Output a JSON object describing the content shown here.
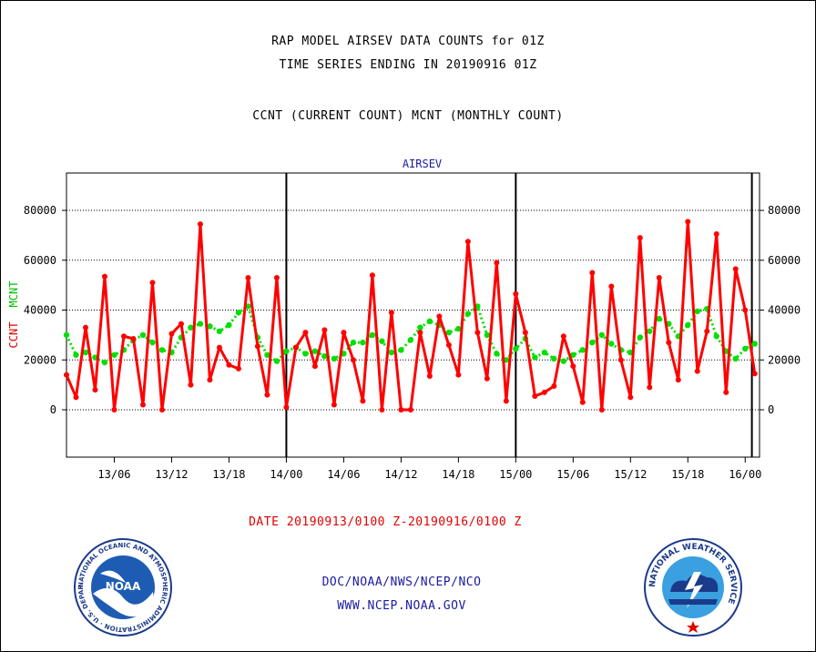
{
  "header": {
    "title_line1": "RAP MODEL AIRSEV DATA COUNTS for 01Z",
    "title_line2": "TIME SERIES ENDING IN 20190916 01Z",
    "subtitle": "CCNT (CURRENT COUNT) MCNT (MONTHLY COUNT)"
  },
  "footer": {
    "date_range": "DATE 20190913/0100 Z-20190916/0100 Z",
    "credit_org": "DOC/NOAA/NWS/NCEP/NCO",
    "credit_url": "WWW.NCEP.NOAA.GOV"
  },
  "logos": {
    "noaa": "NOAA",
    "noaa_ring": "NATIONAL OCEANIC AND ATMOSPHERIC ADMINISTRATION · U.S. DEPARTMENT OF COMMERCE ·",
    "nws_ring": "NATIONAL WEATHER SERVICE"
  },
  "colors": {
    "ccnt": "#ff0000",
    "mcnt": "#00e000",
    "title_blue": "#1a1aa0",
    "grid": "#000000"
  },
  "chart_data": {
    "type": "line",
    "title": "AIRSEV",
    "ylabel_left": "CCNT",
    "ylabel_right": "MCNT",
    "ylim": [
      -19000,
      95000
    ],
    "yticks": [
      0,
      20000,
      40000,
      60000,
      80000
    ],
    "xlim": [
      1,
      73.5
    ],
    "xtick_positions": [
      6,
      12,
      18,
      24,
      30,
      36,
      42,
      48,
      54,
      60,
      66,
      72
    ],
    "xtick_labels": [
      "13/06",
      "13/12",
      "13/18",
      "14/00",
      "14/06",
      "14/12",
      "14/18",
      "15/00",
      "15/06",
      "15/12",
      "15/18",
      "16/00"
    ],
    "day_boundaries": [
      24,
      48,
      72.7
    ],
    "grid": true,
    "x": [
      1,
      2,
      3,
      4,
      5,
      6,
      7,
      8,
      9,
      10,
      11,
      12,
      13,
      14,
      15,
      16,
      17,
      18,
      19,
      20,
      21,
      22,
      23,
      24,
      25,
      26,
      27,
      28,
      29,
      30,
      31,
      32,
      33,
      34,
      35,
      36,
      37,
      38,
      39,
      40,
      41,
      42,
      43,
      44,
      45,
      46,
      47,
      48,
      49,
      50,
      51,
      52,
      53,
      54,
      55,
      56,
      57,
      58,
      59,
      60,
      61,
      62,
      63,
      64,
      65,
      66,
      67,
      68,
      69,
      70,
      71,
      72,
      73
    ],
    "series": [
      {
        "name": "CCNT",
        "values": [
          14000,
          5000,
          33000,
          8000,
          53500,
          0,
          29500,
          28500,
          2000,
          51000,
          0,
          30500,
          34500,
          10000,
          74500,
          12000,
          25000,
          18000,
          16500,
          53000,
          25500,
          6000,
          53000,
          1000,
          25000,
          31000,
          17500,
          32000,
          2000,
          31000,
          20000,
          3500,
          54000,
          0,
          39000,
          0,
          0,
          31000,
          13500,
          37500,
          26000,
          14000,
          67500,
          31000,
          12500,
          59000,
          3500,
          46500,
          31000,
          5500,
          7000,
          9500,
          29500,
          17500,
          3000,
          55000,
          0,
          49500,
          20000,
          5000,
          69000,
          9000,
          53000,
          27000,
          12000,
          75500,
          15500,
          31500,
          70500,
          7000,
          56500,
          40000,
          14500
        ]
      },
      {
        "name": "MCNT",
        "values": [
          30000,
          22000,
          23000,
          21000,
          19000,
          22000,
          24000,
          28000,
          30000,
          27000,
          24000,
          23000,
          29000,
          33000,
          34500,
          33500,
          31500,
          34000,
          39000,
          41500,
          29000,
          22000,
          19500,
          23500,
          25000,
          22500,
          23500,
          21500,
          20500,
          22500,
          27000,
          27000,
          30000,
          27500,
          23000,
          24000,
          28000,
          33000,
          35500,
          34000,
          31000,
          32500,
          38500,
          41500,
          30000,
          22500,
          20000,
          24500,
          28500,
          21000,
          23000,
          20500,
          19500,
          22000,
          24000,
          27000,
          30000,
          26500,
          24000,
          23000,
          29000,
          31500,
          36500,
          34500,
          29500,
          34000,
          39500,
          40500,
          29500,
          23500,
          20500,
          24500,
          26500
        ]
      }
    ]
  }
}
